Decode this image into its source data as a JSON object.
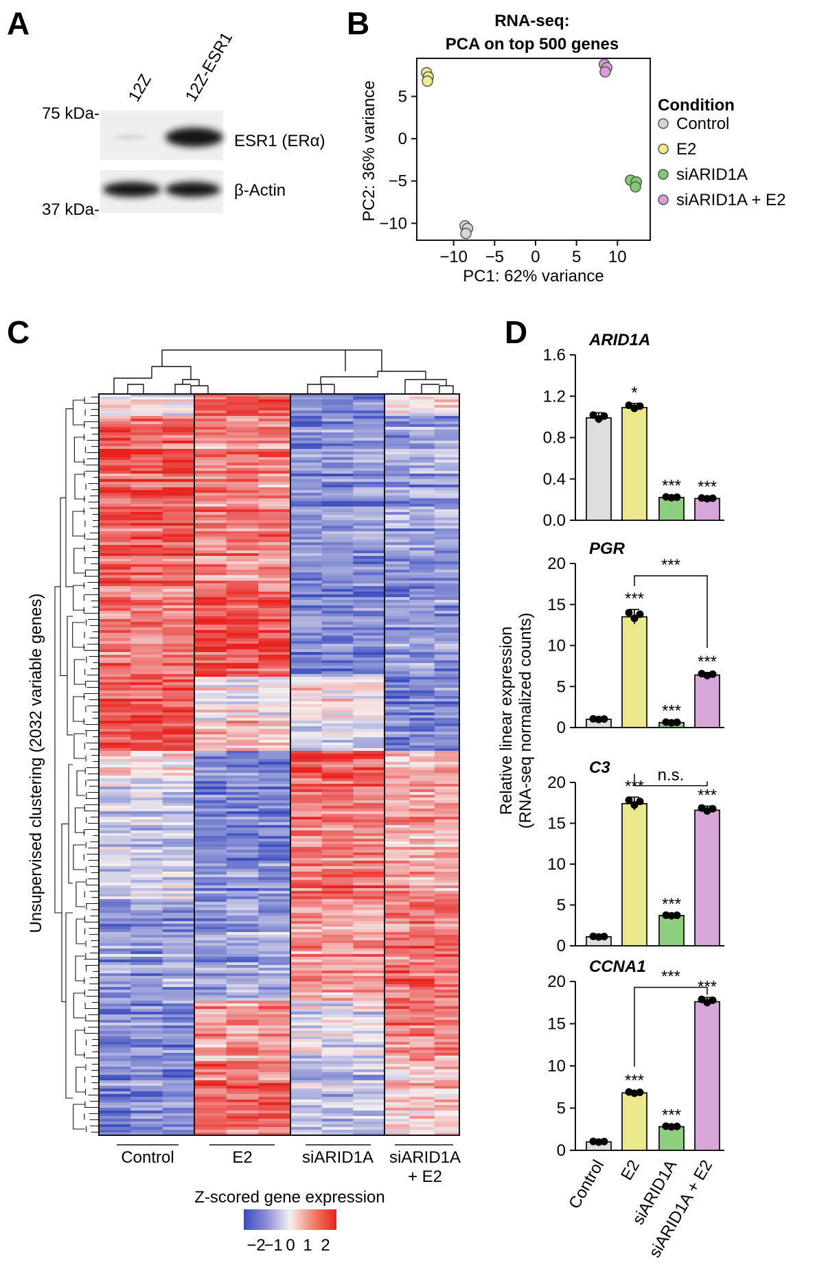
{
  "panels": {
    "a": "A",
    "b": "B",
    "c": "C",
    "d": "D"
  },
  "western": {
    "lanes": [
      "12Z",
      "12Z-ESR1"
    ],
    "markers": [
      "75 kDa-",
      "37 kDa-"
    ],
    "bands": [
      "ESR1 (ERα)",
      "β-Actin"
    ]
  },
  "chart_data": [
    {
      "type": "scatter",
      "panel": "B",
      "title": "RNA-seq:",
      "subtitle": "PCA on top 500 genes",
      "xlabel": "PC1: 62% variance",
      "ylabel": "PC2: 36% variance",
      "xlim": [
        -14.5,
        14
      ],
      "ylim": [
        -12,
        9.5
      ],
      "xticks": [
        -10,
        -5,
        0,
        5,
        10
      ],
      "xtick_labels": [
        "−10",
        "−5",
        "0",
        "5",
        "10"
      ],
      "yticks": [
        -10,
        -5,
        0,
        5
      ],
      "ytick_labels": [
        "−10",
        "−5",
        "0",
        "5"
      ],
      "legend_title": "Condition",
      "legend_position": "right",
      "series": [
        {
          "name": "Control",
          "color": "#d4d4d4",
          "points": [
            [
              -8.6,
              -10.3
            ],
            [
              -8.3,
              -10.6
            ],
            [
              -8.5,
              -11.2
            ]
          ]
        },
        {
          "name": "E2",
          "color": "#f1eb8f",
          "points": [
            [
              -13.3,
              7.8
            ],
            [
              -13.1,
              7.3
            ],
            [
              -13.2,
              6.8
            ]
          ]
        },
        {
          "name": "siARID1A",
          "color": "#7fcb72",
          "points": [
            [
              11.6,
              -4.9
            ],
            [
              12.3,
              -5.1
            ],
            [
              12.2,
              -5.7
            ]
          ]
        },
        {
          "name": "siARID1A + E2",
          "color": "#d6a0d6",
          "points": [
            [
              8.4,
              8.8
            ],
            [
              8.7,
              8.4
            ],
            [
              8.5,
              7.9
            ]
          ]
        }
      ]
    },
    {
      "type": "heatmap",
      "panel": "C",
      "ylabel": "Unsupervised clustering (2032 variable genes)",
      "groups": [
        "Control",
        "E2",
        "siARID1A",
        "siARID1A\n+ E2"
      ],
      "group_labels": [
        "Control",
        "E2",
        "siARID1A",
        "siARID1A",
        "+ E2"
      ],
      "colorbar_title": "Z-scored gene expression",
      "colorbar_ticks": [
        "−2",
        "−1",
        "0",
        "1",
        "2"
      ],
      "colorbar_range": [
        -2.2,
        2.2
      ],
      "blocks": [
        {
          "rows": [
            0.0,
            0.03
          ],
          "values": [
            0.0,
            1.8,
            -1.3,
            0.2
          ]
        },
        {
          "rows": [
            0.03,
            0.26
          ],
          "values": [
            1.5,
            1.1,
            -1.3,
            -1.1
          ]
        },
        {
          "rows": [
            0.26,
            0.38
          ],
          "values": [
            1.2,
            1.7,
            -1.4,
            -1.2
          ]
        },
        {
          "rows": [
            0.38,
            0.44
          ],
          "values": [
            1.8,
            0.0,
            0.2,
            -1.4
          ]
        },
        {
          "rows": [
            0.44,
            0.48
          ],
          "values": [
            1.7,
            0.5,
            -0.5,
            -1.5
          ]
        },
        {
          "rows": [
            0.48,
            0.52
          ],
          "values": [
            0.3,
            -1.4,
            1.7,
            0.6
          ]
        },
        {
          "rows": [
            0.52,
            0.68
          ],
          "values": [
            -0.5,
            -1.4,
            1.3,
            0.8
          ]
        },
        {
          "rows": [
            0.68,
            0.82
          ],
          "values": [
            -1.1,
            -1.0,
            0.9,
            1.3
          ]
        },
        {
          "rows": [
            0.82,
            0.9
          ],
          "values": [
            -1.3,
            1.0,
            -0.2,
            1.2
          ]
        },
        {
          "rows": [
            0.9,
            1.0
          ],
          "values": [
            -1.4,
            1.4,
            -0.6,
            0.4
          ]
        }
      ]
    },
    {
      "type": "bar",
      "panel": "D",
      "shared_ylabel": [
        "Relative linear expression",
        "(RNA-seq normalized counts)"
      ],
      "categories": [
        "Control",
        "E2",
        "siARID1A",
        "siARID1A + E2"
      ],
      "colors": [
        "#dedede",
        "#ece88c",
        "#8dcf7f",
        "#d9a6d9"
      ],
      "subplots": [
        {
          "title": "ARID1A",
          "ylim": [
            0,
            1.6
          ],
          "yticks": [
            "0.0",
            "0.4",
            "0.8",
            "1.2",
            "1.6"
          ],
          "values": [
            0.99,
            1.09,
            0.22,
            0.21
          ],
          "errors": [
            0.05,
            0.04,
            0.01,
            0.01
          ],
          "significance": [
            "",
            "*",
            "***",
            "***"
          ],
          "comparison": null
        },
        {
          "title": "PGR",
          "ylim": [
            0,
            20
          ],
          "yticks": [
            "0",
            "5",
            "10",
            "15",
            "20"
          ],
          "values": [
            1.0,
            13.5,
            0.6,
            6.4
          ],
          "errors": [
            0.1,
            0.9,
            0.1,
            0.3
          ],
          "significance": [
            "",
            "***",
            "***",
            "***"
          ],
          "comparison": {
            "from": 1,
            "to": 3,
            "label": "***",
            "y": 18.5
          }
        },
        {
          "title": "C3",
          "ylim": [
            0,
            20
          ],
          "yticks": [
            "0",
            "5",
            "10",
            "15",
            "20"
          ],
          "values": [
            1.1,
            17.4,
            3.7,
            16.6
          ],
          "errors": [
            0.1,
            0.8,
            0.1,
            0.5
          ],
          "significance": [
            "",
            "***",
            "***",
            "***"
          ],
          "comparison": {
            "from": 1,
            "to": 3,
            "label": "n.s.",
            "y": 19.6
          }
        },
        {
          "title": "CCNA1",
          "ylim": [
            0,
            20
          ],
          "yticks": [
            "0",
            "5",
            "10",
            "15",
            "20"
          ],
          "values": [
            1.0,
            6.8,
            2.8,
            17.6
          ],
          "errors": [
            0.1,
            0.2,
            0.1,
            0.5
          ],
          "significance": [
            "",
            "***",
            "***",
            "***"
          ],
          "comparison": {
            "from": 1,
            "to": 3,
            "label": "***",
            "y": 19.3,
            "up": true
          }
        }
      ]
    }
  ]
}
